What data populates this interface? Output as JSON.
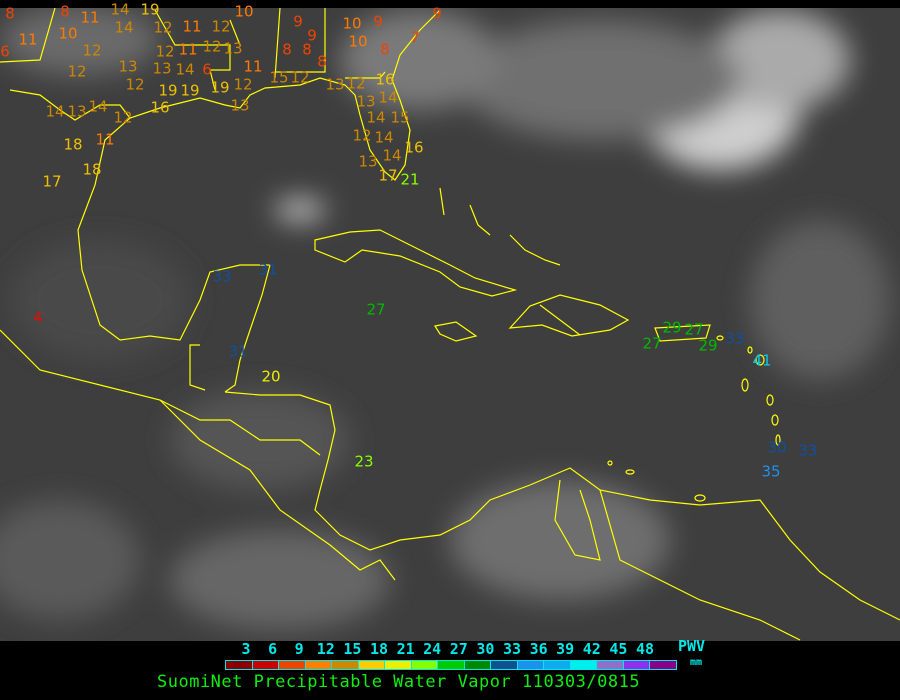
{
  "legend": {
    "ticks": [
      "3",
      "6",
      "9",
      "12",
      "15",
      "18",
      "21",
      "24",
      "27",
      "30",
      "33",
      "36",
      "39",
      "42",
      "45",
      "48"
    ],
    "colors": [
      "#8b0000",
      "#cc0000",
      "#ee4400",
      "#ff8000",
      "#cc8800",
      "#ffcc00",
      "#eeee00",
      "#88ff00",
      "#00cc00",
      "#008800",
      "#105090",
      "#2090ee",
      "#10aaee",
      "#00eeee",
      "#9070cc",
      "#9030ee",
      "#880088"
    ],
    "quantity": "PWV",
    "unit": "mm"
  },
  "title": "SuomiNet Precipitable Water Vapor 110303/0815",
  "colors": {
    "coastline": "#ffff00",
    "ocean": "#3c3c3c"
  },
  "stations": [
    "8",
    "6",
    "11",
    "8",
    "10",
    "11",
    "14",
    "14",
    "19",
    "12",
    "11",
    "12",
    "10",
    "12",
    "12",
    "13",
    "12",
    "13",
    "12",
    "11",
    "12",
    "13",
    "14",
    "6",
    "11",
    "15",
    "12",
    "19",
    "19",
    "19",
    "12",
    "16",
    "13",
    "14",
    "13",
    "14",
    "12",
    "18",
    "11",
    "18",
    "17",
    "9",
    "9",
    "8",
    "8",
    "8",
    "10",
    "9",
    "10",
    "8",
    "7",
    "9",
    "16",
    "13",
    "12",
    "13",
    "14",
    "14",
    "15",
    "12",
    "14",
    "14",
    "16",
    "13",
    "17",
    "21",
    "4",
    "33",
    "31",
    "31",
    "20",
    "27",
    "23",
    "27",
    "29",
    "27",
    "29",
    "33",
    "41",
    "30",
    "33",
    "35"
  ]
}
